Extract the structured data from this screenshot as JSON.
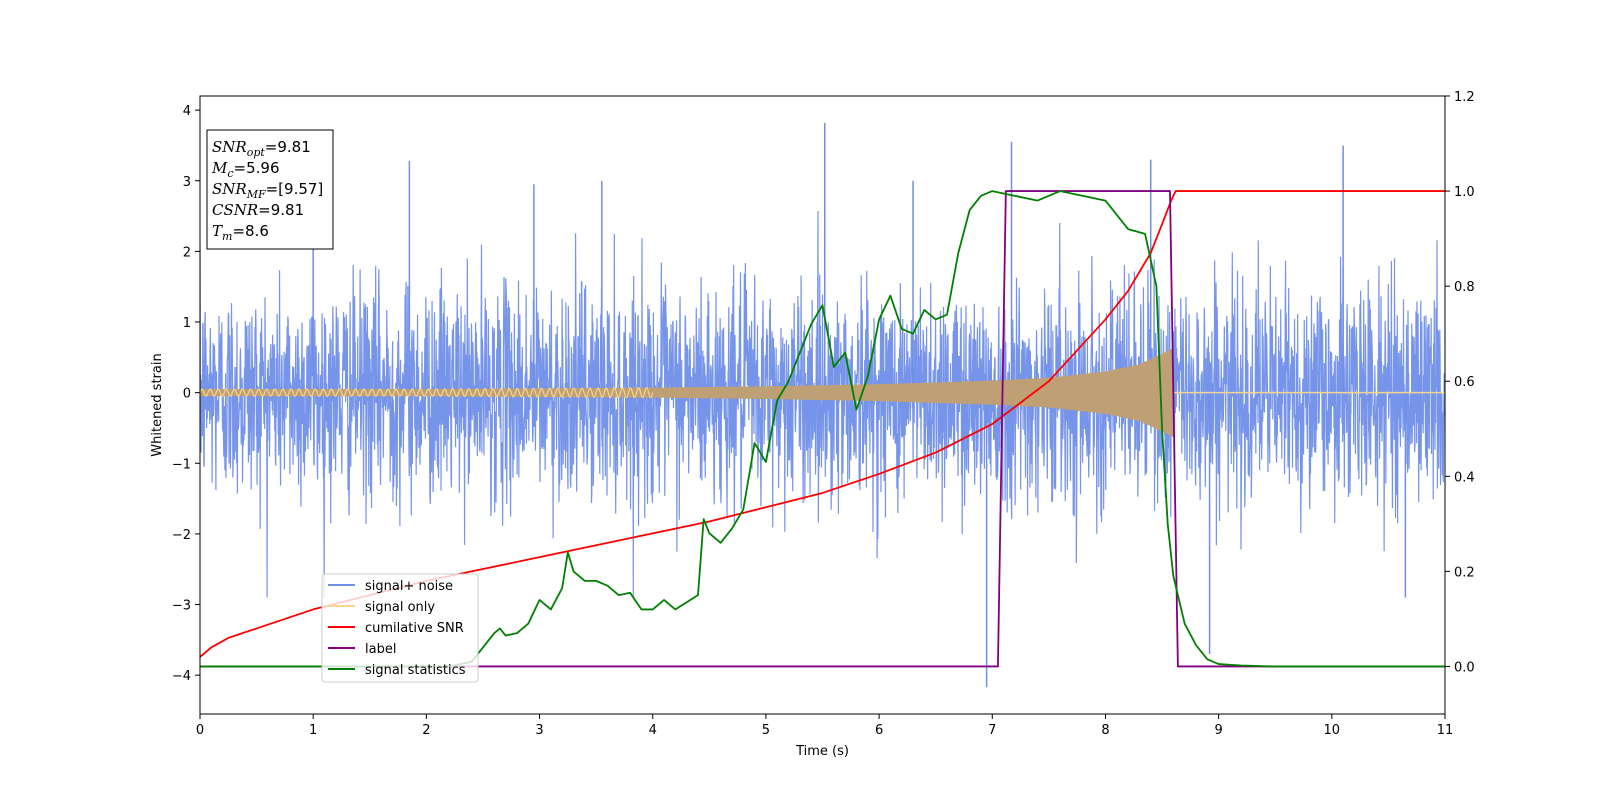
{
  "chart_data": {
    "type": "line",
    "xlabel": "Time (s)",
    "ylabel": "Whitened strain",
    "xlim": [
      0,
      11
    ],
    "ylim": [
      -4.55,
      4.2
    ],
    "y2lim": [
      -0.1,
      1.2
    ],
    "x_ticks": [
      "0",
      "1",
      "2",
      "3",
      "4",
      "5",
      "6",
      "7",
      "8",
      "9",
      "10",
      "11"
    ],
    "y_ticks": [
      "−4",
      "−3",
      "−2",
      "−1",
      "0",
      "1",
      "2",
      "3",
      "4"
    ],
    "y2_ticks": [
      "0.0",
      "0.2",
      "0.4",
      "0.6",
      "0.8",
      "1.0",
      "1.2"
    ],
    "legend_position": "lower-left",
    "legend": [
      {
        "label": "signal+ noise",
        "color": "#6f8ee8"
      },
      {
        "label": "signal only",
        "color": "#f5d590"
      },
      {
        "label": "cumilative SNR",
        "color": "#ff0000"
      },
      {
        "label": "label",
        "color": "#800080"
      },
      {
        "label": "signal statistics",
        "color": "#008000"
      }
    ],
    "annotation": [
      {
        "prefix": "SNR",
        "sub": "opt",
        "value": "=9.81"
      },
      {
        "prefix": "M",
        "sub": "c",
        "value": "=5.96"
      },
      {
        "prefix": "SNR",
        "sub": "MF",
        "value": "=[9.57]"
      },
      {
        "prefix": "CSNR",
        "sub": "",
        "value": "=9.81"
      },
      {
        "prefix": "T",
        "sub": "m",
        "value": "=8.6"
      }
    ],
    "series": [
      {
        "name": "signal+ noise",
        "axis": "left",
        "style": "noise",
        "color": "#6f8ee8",
        "std": 0.75,
        "peaks": [
          [
            1.0,
            2.6
          ],
          [
            1.85,
            3.28
          ],
          [
            2.95,
            2.95
          ],
          [
            3.55,
            3.0
          ],
          [
            5.52,
            3.82
          ],
          [
            6.3,
            3.0
          ],
          [
            6.95,
            -4.17
          ],
          [
            7.17,
            3.55
          ],
          [
            8.4,
            3.3
          ],
          [
            8.92,
            -3.7
          ],
          [
            10.1,
            3.5
          ],
          [
            10.65,
            -2.9
          ]
        ]
      },
      {
        "name": "signal only",
        "axis": "left",
        "style": "envelope",
        "color": "#f5d590",
        "t_end": 8.6,
        "envelope": [
          [
            0,
            0.05
          ],
          [
            1,
            0.05
          ],
          [
            2,
            0.05
          ],
          [
            3,
            0.06
          ],
          [
            4,
            0.07
          ],
          [
            5,
            0.09
          ],
          [
            6,
            0.12
          ],
          [
            7,
            0.17
          ],
          [
            7.5,
            0.21
          ],
          [
            8.0,
            0.3
          ],
          [
            8.3,
            0.4
          ],
          [
            8.5,
            0.55
          ],
          [
            8.6,
            0.63
          ]
        ]
      },
      {
        "name": "cumilative SNR",
        "axis": "right",
        "color": "#ff0000",
        "x": [
          0,
          0.1,
          0.25,
          0.5,
          1,
          1.5,
          2,
          2.5,
          3,
          3.5,
          4,
          4.5,
          5,
          5.5,
          6,
          6.5,
          7,
          7.5,
          8,
          8.2,
          8.4,
          8.5,
          8.58,
          8.62,
          11
        ],
        "y": [
          0.02,
          0.04,
          0.06,
          0.08,
          0.12,
          0.15,
          0.18,
          0.205,
          0.23,
          0.255,
          0.28,
          0.305,
          0.335,
          0.365,
          0.405,
          0.45,
          0.51,
          0.6,
          0.73,
          0.79,
          0.87,
          0.93,
          0.98,
          1.0,
          1.0
        ]
      },
      {
        "name": "label",
        "axis": "right",
        "color": "#800080",
        "x": [
          0,
          7.05,
          7.12,
          8.57,
          8.64,
          11
        ],
        "y": [
          0.0,
          0.0,
          1.0,
          1.0,
          0.0,
          0.0
        ]
      },
      {
        "name": "signal statistics",
        "axis": "right",
        "color": "#008000",
        "x": [
          0,
          2.2,
          2.4,
          2.5,
          2.6,
          2.65,
          2.7,
          2.8,
          2.9,
          3.0,
          3.1,
          3.2,
          3.25,
          3.3,
          3.4,
          3.5,
          3.6,
          3.7,
          3.8,
          3.9,
          4.0,
          4.1,
          4.2,
          4.3,
          4.4,
          4.45,
          4.5,
          4.6,
          4.7,
          4.8,
          4.9,
          5.0,
          5.1,
          5.2,
          5.3,
          5.4,
          5.5,
          5.6,
          5.7,
          5.8,
          5.9,
          6.0,
          6.1,
          6.2,
          6.3,
          6.4,
          6.5,
          6.6,
          6.7,
          6.8,
          6.9,
          7.0,
          7.2,
          7.4,
          7.6,
          7.8,
          8.0,
          8.2,
          8.35,
          8.45,
          8.5,
          8.55,
          8.6,
          8.7,
          8.8,
          8.9,
          9.0,
          9.2,
          9.5,
          11
        ],
        "y": [
          0.0,
          0.0,
          0.01,
          0.04,
          0.07,
          0.08,
          0.065,
          0.07,
          0.09,
          0.14,
          0.12,
          0.165,
          0.24,
          0.2,
          0.18,
          0.18,
          0.17,
          0.15,
          0.155,
          0.12,
          0.12,
          0.14,
          0.12,
          0.135,
          0.15,
          0.31,
          0.28,
          0.26,
          0.29,
          0.33,
          0.47,
          0.43,
          0.56,
          0.6,
          0.66,
          0.72,
          0.76,
          0.63,
          0.66,
          0.54,
          0.61,
          0.73,
          0.78,
          0.71,
          0.7,
          0.75,
          0.73,
          0.74,
          0.87,
          0.96,
          0.99,
          1.0,
          0.99,
          0.98,
          1.0,
          0.99,
          0.98,
          0.92,
          0.91,
          0.8,
          0.5,
          0.3,
          0.19,
          0.09,
          0.045,
          0.015,
          0.005,
          0.002,
          0.0,
          0.0
        ]
      }
    ]
  }
}
